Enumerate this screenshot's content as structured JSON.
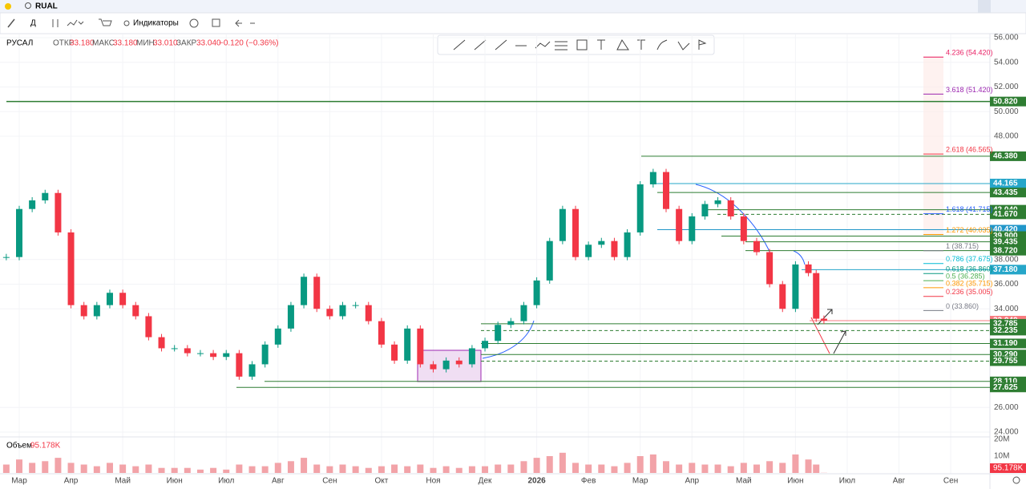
{
  "header": {
    "symbol": "RUAL"
  },
  "toolbar": {
    "interval": "Д",
    "indicators": "Индикаторы"
  },
  "legend": {
    "name": "РУСАЛ",
    "open_label": "ОТКР",
    "open": "33.180",
    "high_label": "МАКС",
    "high": "33.180",
    "low_label": "МИН",
    "low": "33.010",
    "close_label": "ЗАКР",
    "close": "33.040",
    "change": "−0.120 (−0.36%)"
  },
  "chart_data": {
    "type": "candle-line",
    "x": [
      -0.25,
      0,
      0.25,
      0.5,
      0.75,
      1,
      1.25,
      1.5,
      1.75,
      2,
      2.25,
      2.5,
      2.75,
      3,
      3.25,
      3.5,
      3.75,
      4,
      4.25,
      4.5,
      4.75,
      5,
      5.25,
      5.5,
      5.75,
      6,
      6.25,
      6.5,
      6.75,
      7,
      7.25,
      7.5,
      7.75,
      8,
      8.25,
      8.5,
      8.75,
      9,
      9.25,
      9.5,
      9.75,
      10,
      10.25,
      10.5,
      10.75,
      11,
      11.25,
      11.5,
      11.75,
      12,
      12.25,
      12.5,
      12.75,
      13,
      13.25,
      13.5,
      13.75,
      14,
      14.25,
      14.5,
      14.75,
      15,
      15.25,
      15.4,
      15.55
    ],
    "values": [
      38.2,
      42.1,
      42.8,
      43.4,
      40.2,
      34.3,
      33.4,
      34.3,
      35.3,
      34.3,
      33.4,
      31.7,
      30.8,
      30.8,
      30.4,
      30.4,
      30.1,
      30.4,
      28.5,
      29.5,
      31.1,
      32.4,
      34.3,
      36.6,
      34.0,
      33.4,
      34.3,
      34.3,
      33.0,
      31.1,
      29.8,
      32.4,
      29.5,
      29.1,
      29.8,
      29.5,
      30.8,
      31.4,
      32.7,
      33.0,
      34.3,
      36.3,
      39.5,
      42.1,
      38.2,
      39.2,
      39.5,
      38.2,
      40.2,
      44.1,
      45.1,
      42.1,
      39.5,
      41.5,
      42.5,
      42.8,
      41.5,
      39.5,
      38.6,
      36.0,
      34.0,
      37.6,
      36.9,
      33.2,
      33.04
    ],
    "up_color": "#089981",
    "down_color": "#f23645",
    "ylim": [
      24,
      56
    ],
    "yticks": [
      {
        "value": 56,
        "label": "56.000"
      },
      {
        "value": 54,
        "label": "54.000"
      },
      {
        "value": 52,
        "label": "52.000"
      },
      {
        "value": 50,
        "label": "50.000"
      },
      {
        "value": 48,
        "label": "48.000"
      },
      {
        "value": 38,
        "label": "38.000"
      },
      {
        "value": 36,
        "label": "36.000"
      },
      {
        "value": 34,
        "label": "34.000"
      },
      {
        "value": 26,
        "label": "26.000"
      },
      {
        "value": 24,
        "label": "24.000"
      }
    ],
    "xticks": [
      {
        "value": 0,
        "label": "Мар"
      },
      {
        "value": 1,
        "label": "Апр"
      },
      {
        "value": 2,
        "label": "Май"
      },
      {
        "value": 3,
        "label": "Июн"
      },
      {
        "value": 4,
        "label": "Июл"
      },
      {
        "value": 5,
        "label": "Авг"
      },
      {
        "value": 6,
        "label": "Сен"
      },
      {
        "value": 7,
        "label": "Окт"
      },
      {
        "value": 8,
        "label": "Ноя"
      },
      {
        "value": 9,
        "label": "Дек"
      },
      {
        "value": 10,
        "label": "2026"
      },
      {
        "value": 11,
        "label": "Фев"
      },
      {
        "value": 12,
        "label": "Мар"
      },
      {
        "value": 13,
        "label": "Апр"
      },
      {
        "value": 14,
        "label": "Май"
      },
      {
        "value": 15,
        "label": "Июн"
      },
      {
        "value": 16,
        "label": "Июл"
      },
      {
        "value": 17,
        "label": "Авг"
      },
      {
        "value": 18,
        "label": "Сен"
      }
    ],
    "levels": [
      {
        "value": 50.82,
        "label": "50.820",
        "color": "#2e7d32"
      },
      {
        "value": 46.38,
        "label": "46.380",
        "color": "#2e7d32"
      },
      {
        "value": 44.165,
        "label": "44.165",
        "color": "#26a6c9"
      },
      {
        "value": 43.435,
        "label": "43.435",
        "color": "#2e7d32"
      },
      {
        "value": 42.04,
        "label": "42.040",
        "color": "#2e7d32"
      },
      {
        "value": 41.67,
        "label": "41.670",
        "color": "#2e7d32"
      },
      {
        "value": 40.42,
        "label": "40.420",
        "color": "#2196c9"
      },
      {
        "value": 39.9,
        "label": "39.900",
        "color": "#2e7d32"
      },
      {
        "value": 39.435,
        "label": "39.435",
        "color": "#2e7d32"
      },
      {
        "value": 38.72,
        "label": "38.720",
        "color": "#2e7d32"
      },
      {
        "value": 37.18,
        "label": "37.180",
        "color": "#26a6c9"
      },
      {
        "value": 33.04,
        "label": "33.040",
        "color": "#f77c80"
      },
      {
        "value": 32.785,
        "label": "32.785",
        "color": "#2e7d32"
      },
      {
        "value": 32.235,
        "label": "32.235",
        "color": "#2e7d32"
      },
      {
        "value": 31.19,
        "label": "31.190",
        "color": "#2e7d32"
      },
      {
        "value": 30.29,
        "label": "30.290",
        "color": "#2e7d32"
      },
      {
        "value": 29.755,
        "label": "29.755",
        "color": "#2e7d32"
      },
      {
        "value": 28.11,
        "label": "28.110",
        "color": "#2e7d32"
      },
      {
        "value": 27.625,
        "label": "27.625",
        "color": "#2e7d32"
      }
    ],
    "fib_levels": [
      {
        "value": 54.42,
        "label": "4.236 (54.420)",
        "color": "#e91e63"
      },
      {
        "value": 51.42,
        "label": "3.618 (51.420)",
        "color": "#9c27b0"
      },
      {
        "value": 46.565,
        "label": "2.618 (46.565)",
        "color": "#f23645"
      },
      {
        "value": 41.715,
        "label": "1.618 (41.715)",
        "color": "#2962ff"
      },
      {
        "value": 40.035,
        "label": "1.272 (40.035)",
        "color": "#ff9800"
      },
      {
        "value": 38.715,
        "label": "1 (38.715)",
        "color": "#787b86"
      },
      {
        "value": 37.675,
        "label": "0.786 (37.675)",
        "color": "#00bcd4"
      },
      {
        "value": 36.86,
        "label": "0.618 (36.860)",
        "color": "#089981"
      },
      {
        "value": 36.285,
        "label": "0.5 (36.285)",
        "color": "#4caf50"
      },
      {
        "value": 35.715,
        "label": "0.382 (35.715)",
        "color": "#ff9800"
      },
      {
        "value": 35.005,
        "label": "0.236 (35.005)",
        "color": "#f23645"
      },
      {
        "value": 33.86,
        "label": "0 (33.860)",
        "color": "#787b86"
      }
    ]
  },
  "volume": {
    "title": "Объем",
    "last": "95.178K",
    "values": [
      5,
      8,
      6,
      7,
      9,
      6,
      5,
      4,
      6,
      5,
      4,
      5,
      3,
      3,
      3,
      2,
      3,
      2,
      5,
      4,
      4,
      6,
      7,
      9,
      5,
      4,
      5,
      4,
      3,
      4,
      5,
      4,
      5,
      3,
      4,
      3,
      4,
      4,
      5,
      5,
      7,
      9,
      10,
      12,
      6,
      5,
      5,
      4,
      6,
      10,
      11,
      7,
      5,
      6,
      5,
      5,
      4,
      6,
      5,
      7,
      6,
      11,
      8,
      5,
      0.095178
    ],
    "ylim": [
      0,
      20
    ],
    "yticks": [
      {
        "value": 20,
        "label": "20M"
      },
      {
        "value": 10,
        "label": "10M"
      }
    ],
    "color": "#f2a3a8"
  }
}
